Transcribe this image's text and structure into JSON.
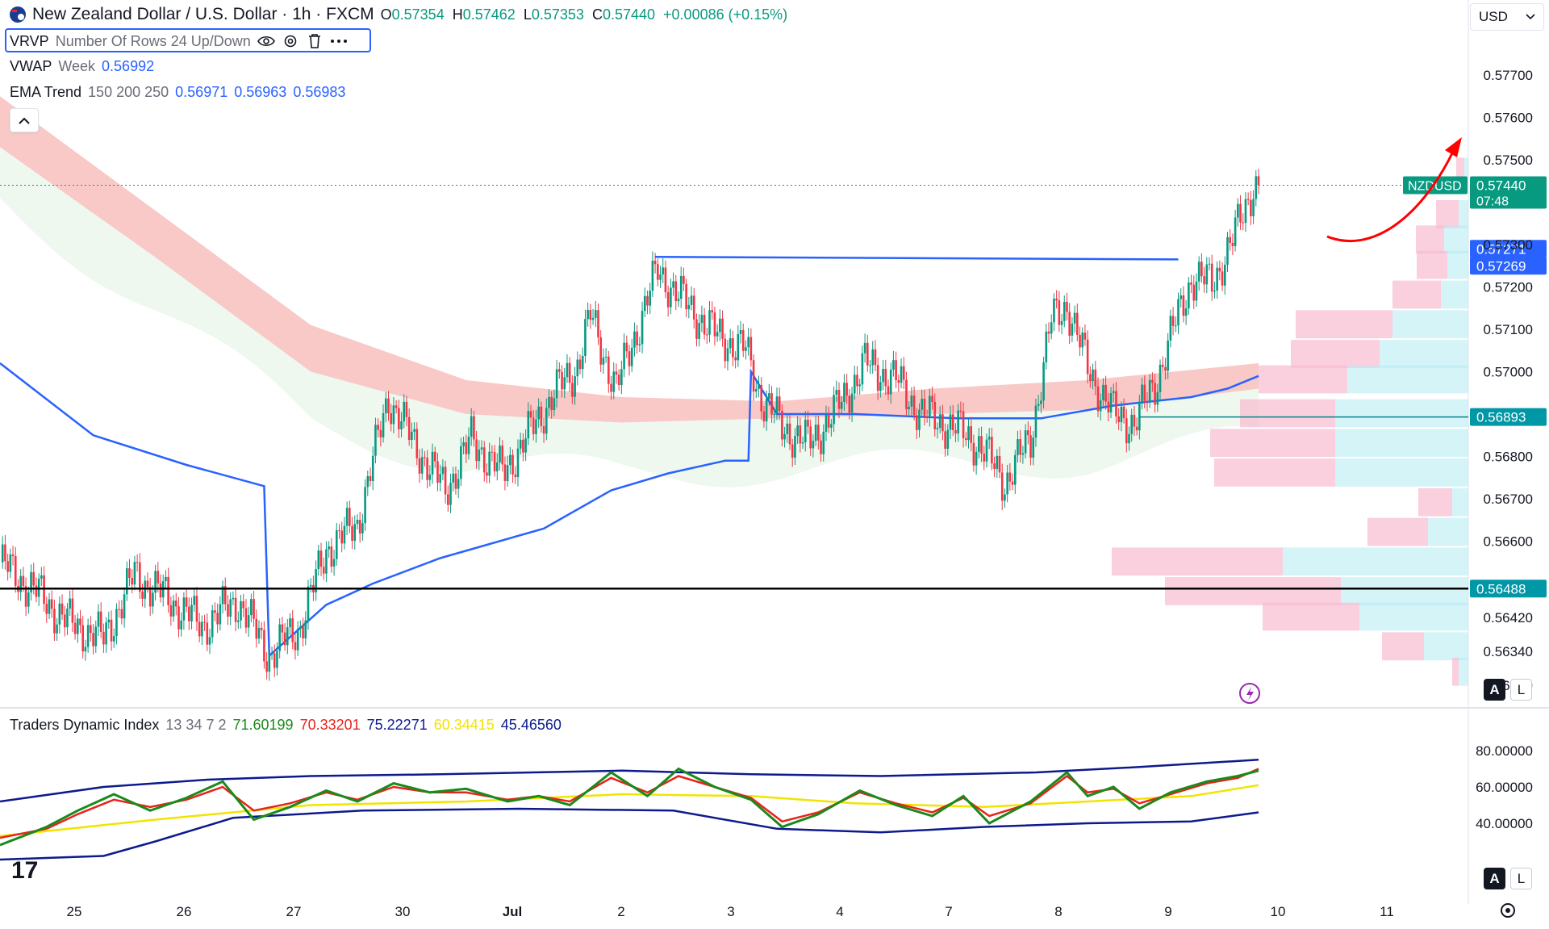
{
  "header": {
    "title": "New Zealand Dollar / U.S. Dollar · 1h · FXCM",
    "ohlc": [
      {
        "k": "O",
        "v": "0.57354"
      },
      {
        "k": "H",
        "v": "0.57462"
      },
      {
        "k": "L",
        "v": "0.57353"
      },
      {
        "k": "C",
        "v": "0.57440"
      }
    ],
    "change": "+0.00086 (+0.15%)",
    "currency": "USD"
  },
  "indicators": {
    "vrvp": {
      "name": "VRVP",
      "params": "Number Of Rows 24 Up/Down"
    },
    "vwap": {
      "name": "VWAP",
      "params": "Week",
      "value": "0.56992"
    },
    "ema": {
      "name": "EMA Trend",
      "params": "150 200 250",
      "values": [
        "0.56971",
        "0.56963",
        "0.56983"
      ]
    },
    "tdi": {
      "name": "Traders Dynamic Index",
      "params": "13 34 7 2",
      "values": [
        "71.60199",
        "70.33201",
        "75.22271",
        "60.34415",
        "45.46560"
      ]
    }
  },
  "price_axis": {
    "ticks": [
      "0.57700",
      "0.57600",
      "0.57500",
      "0.57300",
      "0.57200",
      "0.57100",
      "0.57000",
      "0.56800",
      "0.56700",
      "0.56600",
      "0.56420",
      "0.56340",
      "0.56260"
    ],
    "labels": [
      {
        "name": "symbol",
        "text": "NZDUSD",
        "value": "0.57440",
        "countdown": "07:48"
      },
      {
        "name": "level-a",
        "value": "0.57271"
      },
      {
        "name": "level-b",
        "value": "0.57269"
      },
      {
        "name": "vwap-level",
        "value": "0.56893"
      },
      {
        "name": "support-level",
        "value": "0.56488"
      }
    ]
  },
  "tdi_axis": {
    "ticks": [
      "80.00000",
      "60.00000",
      "40.00000"
    ]
  },
  "time_axis": {
    "labels": [
      "25",
      "26",
      "27",
      "30",
      "Jul",
      "2",
      "3",
      "4",
      "7",
      "8",
      "9",
      "10",
      "11"
    ]
  },
  "buttons": {
    "auto": "A",
    "log": "L"
  },
  "colors": {
    "up": "#089981",
    "down": "#f23645",
    "vwap": "#2962ff",
    "ema_band": "#f6b7b3",
    "tdi_green": "#1a8a1a",
    "tdi_red": "#e8231c",
    "tdi_yellow": "#f2e400",
    "tdi_band": "#0d1a8c",
    "support": "#000000",
    "resistance": "#2962ff",
    "arrow": "#ff0000"
  },
  "chart_data": {
    "type": "candlestick",
    "symbol": "NZDUSD",
    "timeframe": "1h",
    "ylim": [
      0.5622,
      0.5782
    ],
    "x_labels": [
      "25",
      "26",
      "27",
      "30",
      "Jul",
      "2",
      "3",
      "4",
      "7",
      "8",
      "9",
      "10",
      "11"
    ],
    "last_price": 0.5744,
    "support_level": 0.56488,
    "resistance_level": 0.57271,
    "vwap_level": 0.56893,
    "close_path": [
      [
        0,
        0.5655
      ],
      [
        14,
        0.5648
      ],
      [
        26,
        0.5641
      ],
      [
        40,
        0.5637
      ],
      [
        52,
        0.5652
      ],
      [
        66,
        0.5646
      ],
      [
        78,
        0.564
      ],
      [
        92,
        0.5646
      ],
      [
        104,
        0.5633
      ],
      [
        116,
        0.564
      ],
      [
        126,
        0.5658
      ],
      [
        138,
        0.5664
      ],
      [
        150,
        0.5694
      ],
      [
        160,
        0.5683
      ],
      [
        172,
        0.5672
      ],
      [
        182,
        0.5684
      ],
      [
        194,
        0.5676
      ],
      [
        204,
        0.5685
      ],
      [
        214,
        0.5695
      ],
      [
        222,
        0.57
      ],
      [
        228,
        0.5713
      ],
      [
        238,
        0.5696
      ],
      [
        246,
        0.571
      ],
      [
        254,
        0.5724
      ],
      [
        262,
        0.5718
      ],
      [
        276,
        0.5709
      ],
      [
        288,
        0.5705
      ],
      [
        294,
        0.5694
      ],
      [
        302,
        0.5687
      ],
      [
        312,
        0.5683
      ],
      [
        322,
        0.569
      ],
      [
        334,
        0.5702
      ],
      [
        346,
        0.5698
      ],
      [
        356,
        0.569
      ],
      [
        368,
        0.5687
      ],
      [
        378,
        0.5683
      ],
      [
        388,
        0.5674
      ],
      [
        398,
        0.5684
      ],
      [
        406,
        0.5712
      ],
      [
        412,
        0.5716
      ],
      [
        420,
        0.5701
      ],
      [
        430,
        0.569
      ],
      [
        438,
        0.5688
      ],
      [
        446,
        0.5697
      ],
      [
        452,
        0.5708
      ],
      [
        460,
        0.5722
      ],
      [
        468,
        0.5721
      ],
      [
        476,
        0.5731
      ],
      [
        484,
        0.5744
      ]
    ],
    "vwap_path": [
      [
        0,
        0.5702
      ],
      [
        36,
        0.5685
      ],
      [
        72,
        0.5678
      ],
      [
        102,
        0.5673
      ],
      [
        104,
        0.5633
      ],
      [
        126,
        0.5645
      ],
      [
        144,
        0.565
      ],
      [
        170,
        0.5656
      ],
      [
        210,
        0.5663
      ],
      [
        236,
        0.5672
      ],
      [
        258,
        0.5676
      ],
      [
        280,
        0.5679
      ],
      [
        289,
        0.5679
      ],
      [
        290,
        0.57
      ],
      [
        300,
        0.569
      ],
      [
        330,
        0.569
      ],
      [
        370,
        0.5689
      ],
      [
        402,
        0.5689
      ],
      [
        430,
        0.5692
      ],
      [
        460,
        0.5694
      ],
      [
        474,
        0.5696
      ],
      [
        486,
        0.5699
      ]
    ],
    "ema_band": {
      "upper": [
        [
          0,
          0.5765
        ],
        [
          60,
          0.5738
        ],
        [
          120,
          0.5711
        ],
        [
          180,
          0.5698
        ],
        [
          240,
          0.5694
        ],
        [
          300,
          0.5693
        ],
        [
          360,
          0.5696
        ],
        [
          420,
          0.5698
        ],
        [
          486,
          0.5702
        ]
      ],
      "lower": [
        [
          0,
          0.5753
        ],
        [
          60,
          0.5727
        ],
        [
          120,
          0.57
        ],
        [
          180,
          0.569
        ],
        [
          240,
          0.5688
        ],
        [
          300,
          0.5689
        ],
        [
          360,
          0.569
        ],
        [
          420,
          0.5691
        ],
        [
          486,
          0.5696
        ]
      ]
    },
    "volume_profile": [
      {
        "price": 0.5747,
        "up": 5,
        "down": 10
      },
      {
        "price": 0.5737,
        "up": 12,
        "down": 28
      },
      {
        "price": 0.5731,
        "up": 30,
        "down": 35
      },
      {
        "price": 0.5725,
        "up": 26,
        "down": 38
      },
      {
        "price": 0.5718,
        "up": 34,
        "down": 60
      },
      {
        "price": 0.5711,
        "up": 94,
        "down": 120
      },
      {
        "price": 0.5704,
        "up": 110,
        "down": 110
      },
      {
        "price": 0.5698,
        "up": 150,
        "down": 110
      },
      {
        "price": 0.569,
        "up": 165,
        "down": 118
      },
      {
        "price": 0.5683,
        "up": 165,
        "down": 155
      },
      {
        "price": 0.5676,
        "up": 165,
        "down": 150
      },
      {
        "price": 0.5669,
        "up": 20,
        "down": 42
      },
      {
        "price": 0.5662,
        "up": 50,
        "down": 75
      },
      {
        "price": 0.5655,
        "up": 230,
        "down": 212
      },
      {
        "price": 0.5648,
        "up": 158,
        "down": 218
      },
      {
        "price": 0.5642,
        "up": 135,
        "down": 120
      },
      {
        "price": 0.5635,
        "up": 55,
        "down": 52
      },
      {
        "price": 0.5629,
        "up": 12,
        "down": 8
      }
    ],
    "tdi": {
      "ylim": [
        0,
        100
      ],
      "ticks": [
        80,
        60,
        40
      ],
      "rsi_price_line": [
        [
          0,
          28
        ],
        [
          18,
          38
        ],
        [
          30,
          47
        ],
        [
          44,
          56
        ],
        [
          58,
          47
        ],
        [
          72,
          54
        ],
        [
          86,
          63
        ],
        [
          98,
          42
        ],
        [
          112,
          49
        ],
        [
          126,
          58
        ],
        [
          138,
          52
        ],
        [
          152,
          62
        ],
        [
          166,
          57
        ],
        [
          180,
          59
        ],
        [
          196,
          52
        ],
        [
          208,
          55
        ],
        [
          220,
          50
        ],
        [
          236,
          68
        ],
        [
          250,
          55
        ],
        [
          262,
          70
        ],
        [
          276,
          60
        ],
        [
          290,
          53
        ],
        [
          302,
          38
        ],
        [
          316,
          45
        ],
        [
          332,
          58
        ],
        [
          346,
          50
        ],
        [
          360,
          44
        ],
        [
          372,
          55
        ],
        [
          382,
          40
        ],
        [
          398,
          52
        ],
        [
          412,
          68
        ],
        [
          420,
          55
        ],
        [
          430,
          60
        ],
        [
          440,
          48
        ],
        [
          452,
          57
        ],
        [
          466,
          63
        ],
        [
          478,
          66
        ],
        [
          486,
          69
        ]
      ],
      "signal_line": [
        [
          0,
          32
        ],
        [
          18,
          37
        ],
        [
          30,
          45
        ],
        [
          44,
          53
        ],
        [
          58,
          49
        ],
        [
          72,
          53
        ],
        [
          86,
          60
        ],
        [
          98,
          47
        ],
        [
          112,
          51
        ],
        [
          126,
          57
        ],
        [
          138,
          53
        ],
        [
          152,
          60
        ],
        [
          166,
          57
        ],
        [
          180,
          57
        ],
        [
          196,
          53
        ],
        [
          208,
          55
        ],
        [
          220,
          52
        ],
        [
          236,
          65
        ],
        [
          250,
          57
        ],
        [
          262,
          66
        ],
        [
          276,
          60
        ],
        [
          290,
          54
        ],
        [
          302,
          41
        ],
        [
          316,
          46
        ],
        [
          332,
          57
        ],
        [
          346,
          51
        ],
        [
          360,
          46
        ],
        [
          372,
          54
        ],
        [
          382,
          44
        ],
        [
          398,
          51
        ],
        [
          412,
          66
        ],
        [
          420,
          57
        ],
        [
          430,
          59
        ],
        [
          440,
          51
        ],
        [
          452,
          56
        ],
        [
          466,
          62
        ],
        [
          478,
          65
        ],
        [
          486,
          70
        ]
      ],
      "market_base_line": [
        [
          0,
          33
        ],
        [
          60,
          42
        ],
        [
          120,
          50
        ],
        [
          180,
          52
        ],
        [
          240,
          56
        ],
        [
          290,
          55
        ],
        [
          330,
          51
        ],
        [
          380,
          49
        ],
        [
          420,
          52
        ],
        [
          460,
          55
        ],
        [
          486,
          61
        ]
      ],
      "upper_band": [
        [
          0,
          52
        ],
        [
          40,
          60
        ],
        [
          80,
          64
        ],
        [
          120,
          66
        ],
        [
          170,
          67
        ],
        [
          240,
          69
        ],
        [
          290,
          67
        ],
        [
          340,
          66
        ],
        [
          400,
          68
        ],
        [
          440,
          71
        ],
        [
          486,
          75
        ]
      ],
      "lower_band": [
        [
          0,
          20
        ],
        [
          40,
          22
        ],
        [
          60,
          30
        ],
        [
          90,
          43
        ],
        [
          140,
          47
        ],
        [
          200,
          48
        ],
        [
          260,
          47
        ],
        [
          300,
          37
        ],
        [
          340,
          35
        ],
        [
          380,
          38
        ],
        [
          420,
          40
        ],
        [
          460,
          41
        ],
        [
          486,
          46
        ]
      ]
    }
  }
}
